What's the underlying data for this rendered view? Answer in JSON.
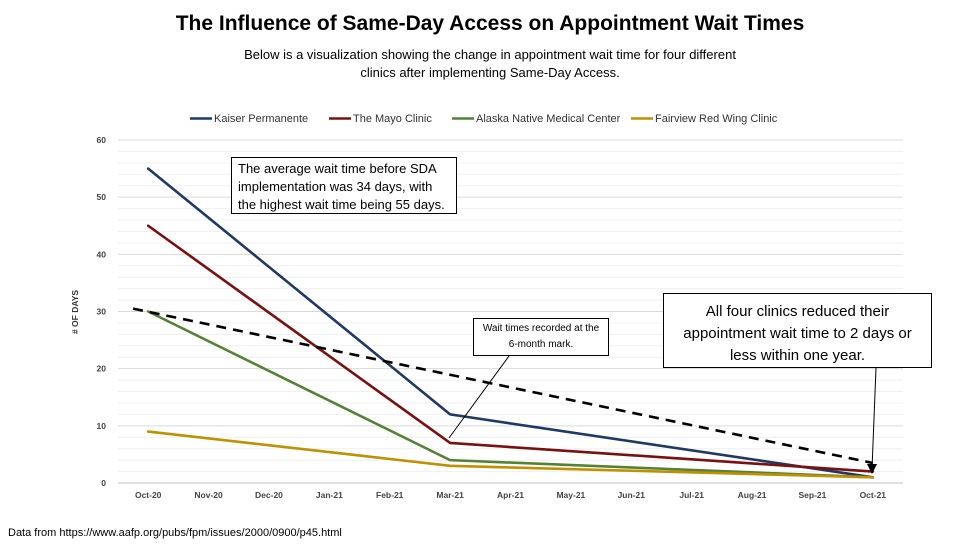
{
  "header": {
    "title": "The Influence of Same-Day Access on Appointment Wait Times",
    "subtitle": "Below is a visualization showing the change in appointment wait time for four different clinics after implementing Same-Day Access."
  },
  "annotations": {
    "average_note": "The average wait time before SDA implementation was 34 days, with the highest wait time being 55 days.",
    "six_month_note": "Wait times recorded at the 6-month mark.",
    "one_year_note": "All four clinics reduced their appointment wait time to 2 days or less within one year."
  },
  "footer": {
    "source": "Data from https://www.aafp.org/pubs/fpm/issues/2000/0900/p45.html"
  },
  "chart_data": {
    "type": "line",
    "title": "The Influence of Same-Day Access on Appointment Wait Times",
    "xlabel": "",
    "ylabel": "# OF DAYS",
    "ylim": [
      0,
      60
    ],
    "y_ticks": [
      0,
      10,
      20,
      30,
      40,
      50,
      60
    ],
    "grid": true,
    "legend_position": "top",
    "categories": [
      "Oct-20",
      "Nov-20",
      "Dec-20",
      "Jan-21",
      "Feb-21",
      "Mar-21",
      "Apr-21",
      "May-21",
      "Jun-21",
      "Jul-21",
      "Aug-21",
      "Sep-21",
      "Oct-21"
    ],
    "series": [
      {
        "name": "Kaiser Permanente",
        "color": "#1f3864",
        "points": [
          [
            0,
            55
          ],
          [
            5,
            12
          ],
          [
            12,
            1
          ]
        ]
      },
      {
        "name": "The Mayo Clinic",
        "color": "#7b1010",
        "points": [
          [
            0,
            45
          ],
          [
            5,
            7
          ],
          [
            12,
            2
          ]
        ]
      },
      {
        "name": "Alaska Native Medical Center",
        "color": "#548235",
        "points": [
          [
            0,
            30
          ],
          [
            5,
            4
          ],
          [
            12,
            1
          ]
        ]
      },
      {
        "name": "Fairview Red Wing Clinic",
        "color": "#bf9000",
        "points": [
          [
            0,
            9
          ],
          [
            5,
            3
          ],
          [
            12,
            1
          ]
        ]
      }
    ],
    "trendline": {
      "style": "dashed",
      "color": "#000000",
      "points": [
        [
          -0.25,
          30.5
        ],
        [
          12,
          3.5
        ]
      ]
    }
  }
}
